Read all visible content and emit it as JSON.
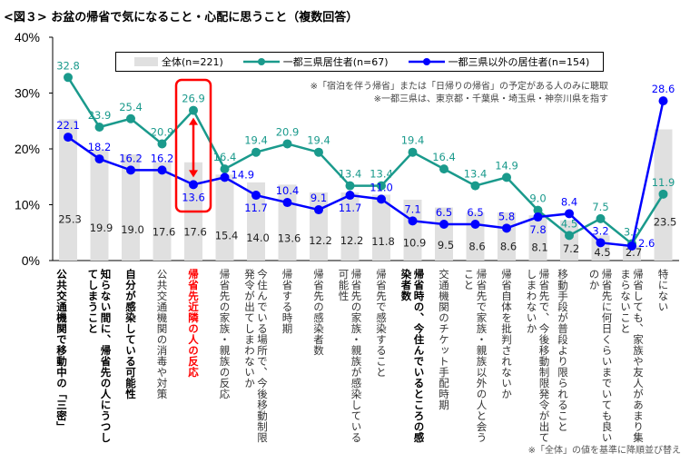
{
  "title": "<図３> お盆の帰省で気になること・心配に思うこと（複数回答）",
  "notes": [
    "※「宿泊を伴う帰省」または「日帰りの帰省」の予定がある人のみに聴取",
    "※一都三県は、東京都・千葉県・埼玉県・神奈川県を指す"
  ],
  "footnote": "※「全体」の値を基準に降順並び替え",
  "colors": {
    "total": "#e0e0e0",
    "tokyo": "#1a9a8c",
    "other": "#0000ff",
    "highlight": "#ff0000"
  },
  "chart_data": {
    "type": "bar+line",
    "ylim": [
      0,
      40
    ],
    "yticks": [
      "0%",
      "10%",
      "20%",
      "30%",
      "40%"
    ],
    "grid": false,
    "legend_position": "top",
    "categories": [
      "公共交通機関で移動中の「三密」",
      "知らない間に、帰省先の人にうつしてしまうこと",
      "自分が感染している可能性",
      "公共交通機関の消毒や対策",
      "帰省先近隣の人の反応",
      "帰省先の家族・親族の反応",
      "今住んでいる場所で、今後移動制限発令が出てしまわないか",
      "帰省する時期",
      "帰省先の感染者数",
      "帰省先の家族・親族が感染している可能性",
      "帰省先で感染すること",
      "帰省時の、今住んでいるところの感染者数",
      "交通機関のチケット手配時期",
      "帰省先で家族・親族以外の人と会うこと",
      "帰省自体を批判されないか",
      "帰省先で、今後移動制限発令が出てしまわないか",
      "移動手段が普段より限られること",
      "帰省先に何日くらいまでいても良いのか",
      "帰省しても、家族や友人があまり集まらないこと",
      "特にない"
    ],
    "category_style": [
      "bold",
      "bold",
      "bold",
      "normal",
      "red",
      "normal",
      "normal",
      "normal",
      "normal",
      "normal",
      "normal",
      "bold",
      "normal",
      "normal",
      "normal",
      "normal",
      "normal",
      "normal",
      "normal",
      "normal"
    ],
    "highlight_index": 4,
    "series": [
      {
        "name": "全体(n=221)",
        "type": "bar",
        "values": [
          25.3,
          19.9,
          19.0,
          17.6,
          17.6,
          15.4,
          14.0,
          13.6,
          12.2,
          12.2,
          11.8,
          10.9,
          9.5,
          8.6,
          8.6,
          8.1,
          7.2,
          4.5,
          2.7,
          23.5
        ]
      },
      {
        "name": "一都三県居住者(n=67)",
        "type": "line",
        "values": [
          32.8,
          23.9,
          25.4,
          20.9,
          26.9,
          16.4,
          19.4,
          20.9,
          19.4,
          13.4,
          13.4,
          19.4,
          16.4,
          13.4,
          14.9,
          9.0,
          4.5,
          7.5,
          3.0,
          11.9
        ]
      },
      {
        "name": "一都三県以外の居住者(n=154)",
        "type": "line",
        "values": [
          22.1,
          18.2,
          16.2,
          16.2,
          13.6,
          14.9,
          11.7,
          10.4,
          9.1,
          11.7,
          11.0,
          7.1,
          6.5,
          6.5,
          5.8,
          7.8,
          8.4,
          3.2,
          2.6,
          28.6
        ]
      }
    ]
  }
}
